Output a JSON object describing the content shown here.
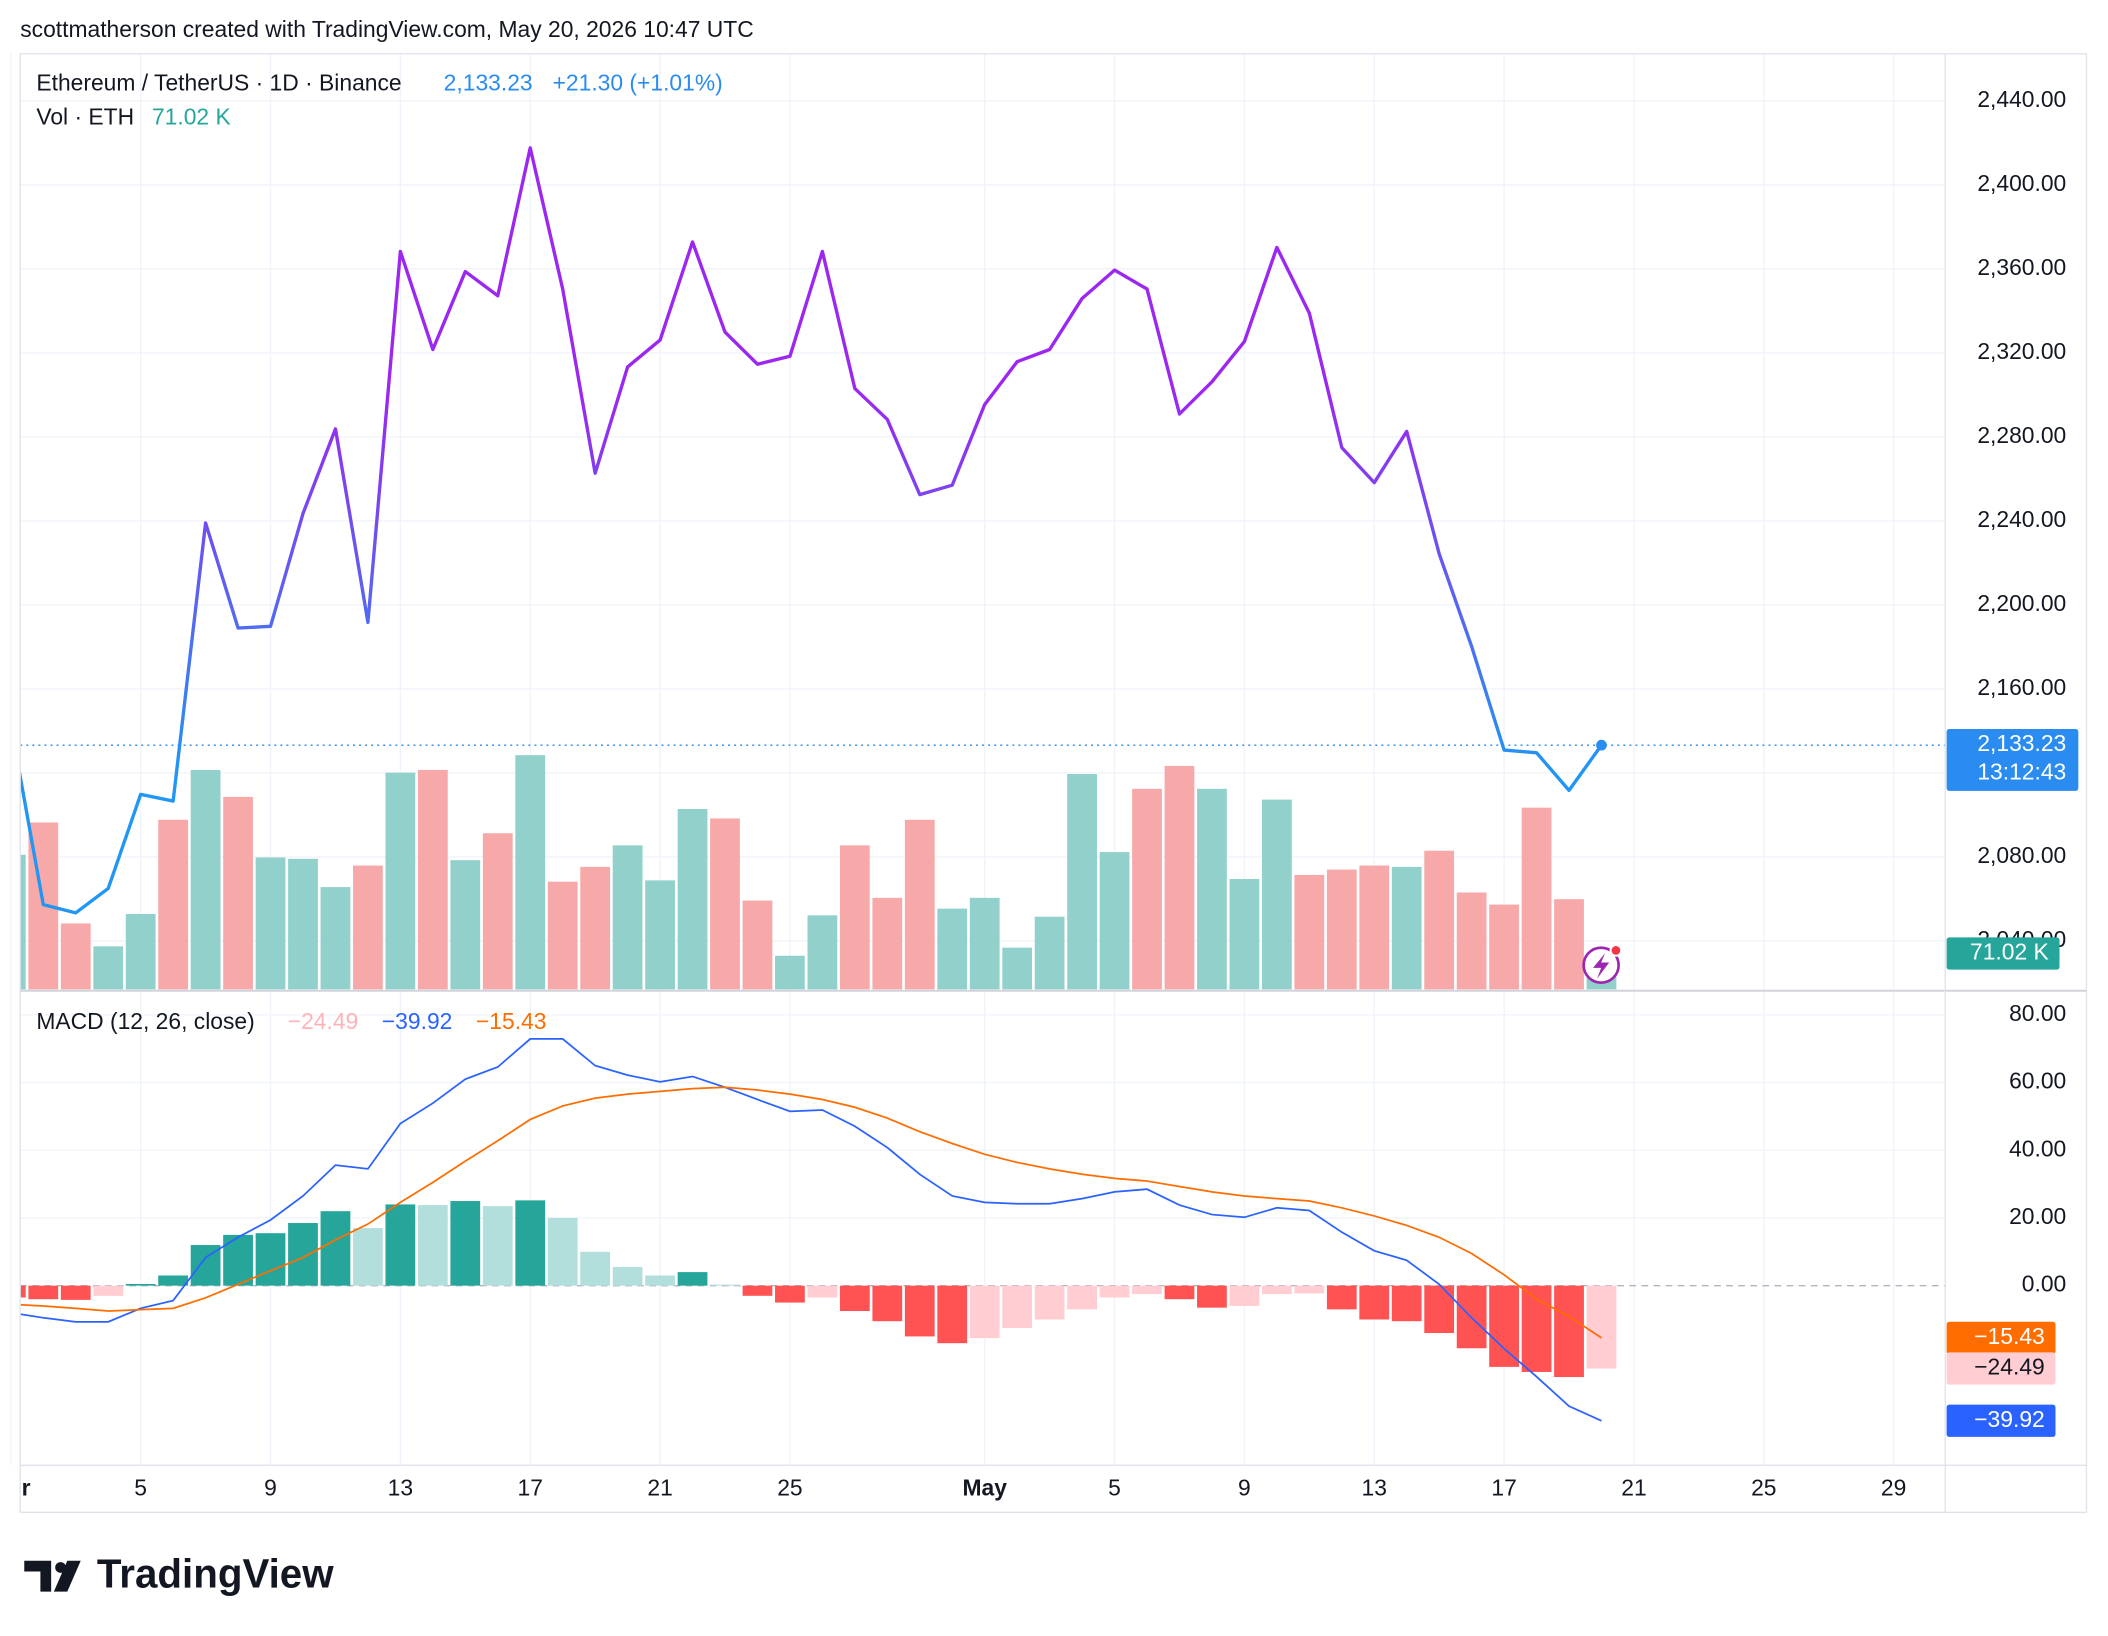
{
  "header": "scottmatherson created with TradingView.com, May 20, 2026 10:47 UTC",
  "logo": "TradingView",
  "chart_data": [
    {
      "type": "line",
      "title": "Ethereum / TetherUS · 1D · Binance",
      "last": {
        "value": 2133.23,
        "label": "2,133.23"
      },
      "change": "+21.30 (+1.01%)",
      "countdown": "13:12:43",
      "series": [
        {
          "color_stops": [
            {
              "value": 2120,
              "color": "#2196f3"
            },
            {
              "value": 2300,
              "color": "#9c27f0"
            }
          ],
          "values": [
            2143,
            2057.3,
            2053.4,
            2065,
            2109.8,
            2106.6,
            2239,
            2189,
            2189.8,
            2243.5,
            2283.8,
            2191.7,
            2368.3,
            2321.6,
            2358.7,
            2347.2,
            2417.6,
            2350.4,
            2262.7,
            2313.3,
            2326.1,
            2372.8,
            2329.9,
            2314.6,
            2318.4,
            2368.3,
            2303,
            2288.3,
            2252.5,
            2257,
            2295.4,
            2315.8,
            2321.6,
            2345.9,
            2359.4,
            2350.4,
            2290.9,
            2306.2,
            2325.4,
            2370.2,
            2338.9,
            2274.9,
            2258.2,
            2282.6,
            2224.3,
            2180.2,
            2130.9,
            2129.6,
            2111.7,
            2133.23
          ]
        }
      ],
      "last_color": "#2a8cf0",
      "ylim": [
        2016.3,
        2462.4
      ],
      "yticks": [
        {
          "value": 2040,
          "label": "2,040.00"
        },
        {
          "value": 2080,
          "label": "2,080.00"
        },
        {
          "value": 2120,
          "label": "2,120.00"
        },
        {
          "value": 2160,
          "label": "2,160.00"
        },
        {
          "value": 2200,
          "label": "2,200.00"
        },
        {
          "value": 2240,
          "label": "2,240.00"
        },
        {
          "value": 2280,
          "label": "2,280.00"
        },
        {
          "value": 2320,
          "label": "2,320.00"
        },
        {
          "value": 2360,
          "label": "2,360.00"
        },
        {
          "value": 2400,
          "label": "2,400.00"
        },
        {
          "value": 2440,
          "label": "2,440.00"
        }
      ],
      "xlim": [
        0.29,
        59.59
      ],
      "xticks": [
        {
          "value": 0,
          "label": "Apr"
        },
        {
          "value": 4,
          "label": "5"
        },
        {
          "value": 8,
          "label": "9"
        },
        {
          "value": 12,
          "label": "13"
        },
        {
          "value": 16,
          "label": "17"
        },
        {
          "value": 20,
          "label": "21"
        },
        {
          "value": 24,
          "label": "25"
        },
        {
          "value": 30,
          "label": "May"
        },
        {
          "value": 34,
          "label": "5"
        },
        {
          "value": 38,
          "label": "9"
        },
        {
          "value": 42,
          "label": "13"
        },
        {
          "value": 46,
          "label": "17"
        },
        {
          "value": 50,
          "label": "21"
        },
        {
          "value": 54,
          "label": "25"
        },
        {
          "value": 58,
          "label": "29"
        }
      ],
      "grid": true
    },
    {
      "type": "bar",
      "title": "Vol · ETH",
      "last_label": "71.02 K",
      "up_color": "#92d1cb",
      "down_color": "#f6a9a8",
      "label_color": "#26a69a",
      "values": [
        300,
        372,
        147,
        96,
        168,
        378,
        489,
        429,
        294,
        291,
        228,
        276,
        483,
        489,
        288,
        348,
        522,
        240,
        273,
        321,
        243,
        402,
        381,
        198,
        75,
        165,
        321,
        204,
        378,
        180,
        204,
        93,
        162,
        480,
        306,
        447,
        498,
        447,
        246,
        423,
        255,
        267,
        276,
        273,
        309,
        216,
        189,
        405,
        201,
        71.02
      ]
    },
    {
      "type": "macd",
      "title": "MACD (12, 26, close)",
      "series": [
        {
          "type": "histogram",
          "color": "#ffb3b8",
          "colors": {
            "up_strong": "#26a69a",
            "up_weak": "#b2dfdb",
            "down_strong": "#ff5252",
            "down_weak": "#ffcdd2"
          },
          "last_label": "−24.49",
          "values": [
            -3.5,
            -4,
            -4.2,
            -3,
            0.5,
            3,
            12,
            15,
            15.5,
            18.5,
            22,
            17,
            24,
            23.8,
            25,
            23.5,
            25.2,
            20,
            10,
            5.5,
            3,
            4,
            0.3,
            -3,
            -5,
            -3.5,
            -7.5,
            -10.5,
            -15,
            -17,
            -15.5,
            -12.5,
            -10,
            -7,
            -3.5,
            -2.5,
            -4,
            -6.5,
            -6,
            -2.5,
            -2.3,
            -7,
            -10,
            -10.5,
            -14,
            -18.5,
            -24,
            -25.5,
            -27,
            -24.49
          ]
        },
        {
          "type": "line",
          "color": "#2962ff",
          "last_label": "−39.92",
          "values": [
            -8,
            -9.5,
            -10.7,
            -10.7,
            -6.7,
            -4.4,
            8.3,
            14.3,
            19.4,
            26.5,
            35.6,
            34.5,
            47.9,
            53.9,
            61,
            64.6,
            72.9,
            72.9,
            65,
            62.2,
            60.2,
            61.8,
            58.6,
            55,
            51.5,
            51.9,
            47.1,
            40.8,
            32.9,
            26.5,
            24.6,
            24.2,
            24.2,
            25.7,
            27.7,
            28.5,
            23.8,
            21,
            20.2,
            23,
            22.2,
            15.8,
            10.3,
            7.5,
            0.4,
            -9.5,
            -18.6,
            -26.9,
            -35.6,
            -39.92
          ]
        },
        {
          "type": "line",
          "color": "#ff6d00",
          "last_label": "−15.43",
          "values": [
            -5.5,
            -6,
            -6.7,
            -7.5,
            -7.1,
            -6.7,
            -3.6,
            0.4,
            4.4,
            8.3,
            13.5,
            18.2,
            24.6,
            30.5,
            36.8,
            42.8,
            49.1,
            53.1,
            55.4,
            56.6,
            57.4,
            58.2,
            58.6,
            57.8,
            56.6,
            55,
            52.7,
            49.5,
            45.5,
            42,
            38.8,
            36.4,
            34.5,
            32.9,
            31.7,
            30.9,
            29.3,
            27.7,
            26.5,
            25.7,
            25,
            23,
            20.6,
            17.8,
            14.3,
            9.5,
            3.2,
            -4,
            -9.1,
            -15.43
          ]
        }
      ],
      "ylim": [
        -53.07,
        87.13
      ],
      "yticks": [
        {
          "value": 0,
          "label": "0.00"
        },
        {
          "value": 20,
          "label": "20.00"
        },
        {
          "value": 40,
          "label": "40.00"
        },
        {
          "value": 60,
          "label": "60.00"
        },
        {
          "value": 80,
          "label": "80.00"
        }
      ]
    }
  ]
}
